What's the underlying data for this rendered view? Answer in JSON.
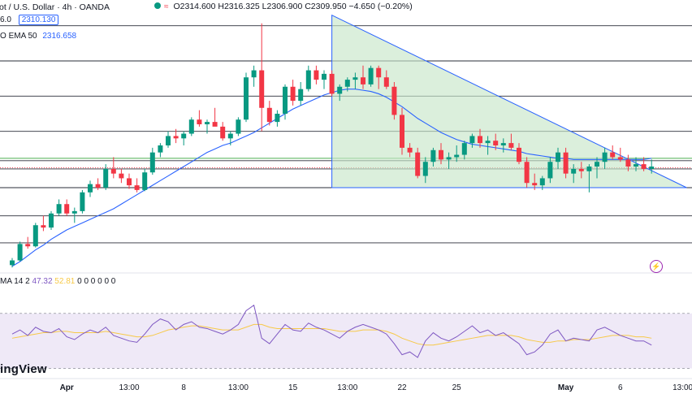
{
  "header": {
    "symbol": "ot / U.S. Dollar · 4h · OANDA",
    "ohlc": "O2314.600 H2316.325 L2306.900 C2309.950 −4.650 (−0.20%)",
    "row2_left": "6.0",
    "price_box": "2310.130",
    "ema_label": "EMA 50",
    "ema_value": "2316.658",
    "row3_prefix": "O"
  },
  "rsi_legend": {
    "label": "MA 14 2",
    "rsi_value": "47.32",
    "ma_value": "52.81",
    "trail": "0 0 0 0 0 0"
  },
  "brand": "ingView",
  "bolt_glyph": "⚡",
  "colors": {
    "up": "#089981",
    "down": "#f23645",
    "ema": "#2962ff",
    "triangle_fill": "#c8e6c9",
    "triangle_line": "#2962ff",
    "rsi": "#7e57c2",
    "rsi_ma": "#f7c948",
    "rsi_band": "#ede7f6",
    "green_line": "#4caf50"
  },
  "chart_data": {
    "type": "candlestick",
    "symbol": "Gold Spot / U.S. Dollar",
    "timeframe": "4h",
    "ylim": [
      2220,
      2445
    ],
    "x_tick_labels": [
      "Apr",
      "13:00",
      "8",
      "13:00",
      "15",
      "13:00",
      "22",
      "25",
      "May",
      "6",
      "13:00"
    ],
    "x_tick_index": [
      7,
      15,
      22,
      29,
      36,
      43,
      50,
      57,
      71,
      78,
      86
    ],
    "bold_ticks": [
      "Apr",
      "May"
    ],
    "horizontal_levels": [
      2430,
      2400,
      2370,
      2340,
      2315,
      2308,
      2292,
      2268,
      2245
    ],
    "green_level": 2317,
    "red_dotted_level": 2309,
    "triangle_base_y": 2292,
    "ema50": [
      2225,
      2229,
      2234,
      2239,
      2243,
      2248,
      2252,
      2256,
      2259,
      2262,
      2265,
      2268,
      2271,
      2274,
      2278,
      2282,
      2286,
      2290,
      2294,
      2298,
      2302,
      2306,
      2310,
      2314,
      2318,
      2322,
      2325,
      2328,
      2330,
      2333,
      2336,
      2339,
      2343,
      2347,
      2351,
      2355,
      2359,
      2362,
      2365,
      2368,
      2371,
      2373,
      2375,
      2376,
      2376,
      2375,
      2374,
      2372,
      2369,
      2365,
      2361,
      2356,
      2351,
      2347,
      2343,
      2339,
      2336,
      2333,
      2331,
      2329,
      2328,
      2327,
      2326,
      2325,
      2324,
      2323,
      2321,
      2320,
      2319,
      2318,
      2317,
      2317,
      2316,
      2316,
      2316,
      2316,
      2316,
      2316,
      2316,
      2316,
      2316,
      2316,
      2317
    ],
    "candles": [
      [
        2226,
        2232,
        2224,
        2230
      ],
      [
        2230,
        2246,
        2229,
        2244
      ],
      [
        2244,
        2250,
        2240,
        2242
      ],
      [
        2242,
        2262,
        2241,
        2260
      ],
      [
        2260,
        2268,
        2255,
        2258
      ],
      [
        2258,
        2272,
        2256,
        2270
      ],
      [
        2270,
        2282,
        2268,
        2278
      ],
      [
        2278,
        2282,
        2268,
        2270
      ],
      [
        2270,
        2275,
        2262,
        2272
      ],
      [
        2272,
        2290,
        2270,
        2288
      ],
      [
        2288,
        2298,
        2284,
        2295
      ],
      [
        2295,
        2300,
        2290,
        2292
      ],
      [
        2292,
        2312,
        2290,
        2308
      ],
      [
        2308,
        2318,
        2300,
        2304
      ],
      [
        2304,
        2308,
        2296,
        2300
      ],
      [
        2300,
        2304,
        2291,
        2294
      ],
      [
        2294,
        2300,
        2288,
        2290
      ],
      [
        2290,
        2308,
        2289,
        2305
      ],
      [
        2305,
        2326,
        2303,
        2322
      ],
      [
        2322,
        2330,
        2318,
        2328
      ],
      [
        2328,
        2340,
        2326,
        2336
      ],
      [
        2336,
        2342,
        2330,
        2334
      ],
      [
        2334,
        2340,
        2328,
        2338
      ],
      [
        2338,
        2352,
        2336,
        2350
      ],
      [
        2350,
        2358,
        2344,
        2346
      ],
      [
        2346,
        2350,
        2338,
        2348
      ],
      [
        2348,
        2360,
        2345,
        2344
      ],
      [
        2344,
        2348,
        2332,
        2334
      ],
      [
        2334,
        2340,
        2328,
        2338
      ],
      [
        2338,
        2352,
        2336,
        2350
      ],
      [
        2350,
        2390,
        2348,
        2386
      ],
      [
        2386,
        2396,
        2378,
        2392
      ],
      [
        2392,
        2432,
        2340,
        2360
      ],
      [
        2360,
        2366,
        2345,
        2348
      ],
      [
        2348,
        2358,
        2344,
        2355
      ],
      [
        2355,
        2380,
        2350,
        2378
      ],
      [
        2378,
        2384,
        2362,
        2366
      ],
      [
        2366,
        2382,
        2362,
        2376
      ],
      [
        2376,
        2396,
        2374,
        2392
      ],
      [
        2392,
        2396,
        2380,
        2384
      ],
      [
        2384,
        2392,
        2376,
        2389
      ],
      [
        2389,
        2392,
        2370,
        2372
      ],
      [
        2372,
        2380,
        2366,
        2378
      ],
      [
        2378,
        2386,
        2374,
        2384
      ],
      [
        2384,
        2390,
        2376,
        2386
      ],
      [
        2386,
        2396,
        2376,
        2380
      ],
      [
        2380,
        2396,
        2378,
        2394
      ],
      [
        2394,
        2396,
        2376,
        2386
      ],
      [
        2386,
        2392,
        2376,
        2378
      ],
      [
        2378,
        2382,
        2350,
        2354
      ],
      [
        2354,
        2360,
        2320,
        2326
      ],
      [
        2326,
        2330,
        2318,
        2322
      ],
      [
        2322,
        2326,
        2300,
        2302
      ],
      [
        2302,
        2318,
        2296,
        2314
      ],
      [
        2314,
        2326,
        2310,
        2324
      ],
      [
        2324,
        2330,
        2312,
        2316
      ],
      [
        2316,
        2322,
        2308,
        2318
      ],
      [
        2318,
        2328,
        2314,
        2320
      ],
      [
        2320,
        2332,
        2316,
        2330
      ],
      [
        2330,
        2338,
        2326,
        2336
      ],
      [
        2336,
        2342,
        2326,
        2330
      ],
      [
        2330,
        2336,
        2320,
        2332
      ],
      [
        2332,
        2338,
        2324,
        2328
      ],
      [
        2328,
        2334,
        2322,
        2330
      ],
      [
        2330,
        2338,
        2324,
        2326
      ],
      [
        2326,
        2330,
        2312,
        2314
      ],
      [
        2314,
        2318,
        2292,
        2296
      ],
      [
        2296,
        2304,
        2290,
        2294
      ],
      [
        2294,
        2302,
        2290,
        2300
      ],
      [
        2300,
        2318,
        2296,
        2314
      ],
      [
        2314,
        2326,
        2308,
        2322
      ],
      [
        2322,
        2326,
        2300,
        2304
      ],
      [
        2304,
        2312,
        2296,
        2308
      ],
      [
        2308,
        2314,
        2300,
        2306
      ],
      [
        2306,
        2312,
        2288,
        2310
      ],
      [
        2310,
        2318,
        2300,
        2314
      ],
      [
        2314,
        2326,
        2308,
        2322
      ],
      [
        2322,
        2328,
        2316,
        2318
      ],
      [
        2318,
        2326,
        2314,
        2316
      ],
      [
        2316,
        2320,
        2306,
        2310
      ],
      [
        2310,
        2318,
        2306,
        2312
      ],
      [
        2312,
        2318,
        2306,
        2308
      ],
      [
        2308,
        2316,
        2304,
        2310
      ]
    ],
    "rsi": [
      55,
      58,
      54,
      60,
      57,
      56,
      59,
      53,
      51,
      55,
      58,
      56,
      60,
      54,
      52,
      50,
      49,
      55,
      62,
      66,
      64,
      58,
      62,
      64,
      60,
      59,
      57,
      55,
      58,
      62,
      72,
      76,
      52,
      48,
      55,
      62,
      58,
      57,
      63,
      60,
      58,
      55,
      52,
      57,
      60,
      62,
      60,
      58,
      55,
      48,
      40,
      42,
      38,
      50,
      56,
      52,
      50,
      53,
      57,
      61,
      56,
      58,
      54,
      56,
      52,
      48,
      40,
      42,
      47,
      55,
      58,
      50,
      52,
      51,
      50,
      58,
      60,
      57,
      54,
      52,
      50,
      50,
      47
    ],
    "rsi_ma": [
      52,
      53,
      54,
      55,
      56,
      56,
      57,
      57,
      56,
      56,
      56,
      56,
      57,
      56,
      55,
      54,
      53,
      53,
      54,
      56,
      58,
      59,
      60,
      61,
      61,
      60,
      59,
      58,
      58,
      58,
      60,
      62,
      62,
      60,
      59,
      59,
      59,
      59,
      59,
      59,
      59,
      58,
      57,
      57,
      57,
      58,
      58,
      58,
      57,
      55,
      52,
      50,
      48,
      47,
      47,
      48,
      49,
      50,
      51,
      52,
      53,
      54,
      54,
      54,
      54,
      53,
      51,
      50,
      49,
      49,
      50,
      50,
      51,
      51,
      51,
      52,
      53,
      54,
      54,
      54,
      53,
      53,
      52
    ],
    "rsi_ylim": [
      25,
      90
    ],
    "rsi_band": [
      30,
      70
    ]
  }
}
